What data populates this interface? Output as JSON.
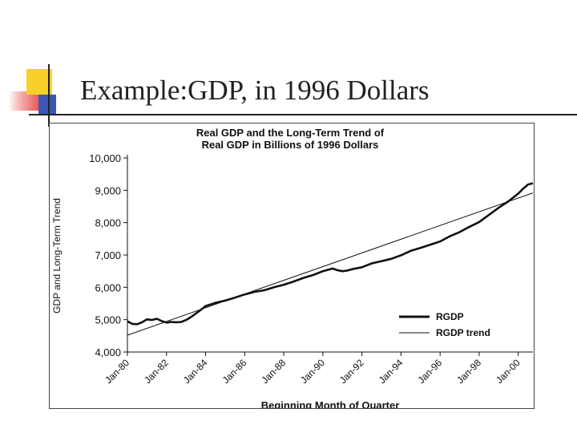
{
  "slide": {
    "title": "Example:GDP, in 1996 Dollars"
  },
  "chart_data": {
    "type": "line",
    "title_line1": "Real GDP and the Long-Term Trend of",
    "title_line2": "Real GDP in Billions of 1996 Dollars",
    "xlabel": "Beginning Month of Quarter",
    "ylabel": "GDP and Long-Term Trend",
    "ylim": [
      4000,
      10000
    ],
    "xlim": [
      1980,
      2000.75
    ],
    "y_ticks": [
      {
        "value": 4000,
        "label": "4,000"
      },
      {
        "value": 5000,
        "label": "5,000"
      },
      {
        "value": 6000,
        "label": "6,000"
      },
      {
        "value": 7000,
        "label": "7,000"
      },
      {
        "value": 8000,
        "label": "8,000"
      },
      {
        "value": 9000,
        "label": "9,000"
      },
      {
        "value": 10000,
        "label": "10,000"
      }
    ],
    "x_ticks": [
      {
        "value": 1980,
        "label": "Jan-80"
      },
      {
        "value": 1982,
        "label": "Jan-82"
      },
      {
        "value": 1984,
        "label": "Jan-84"
      },
      {
        "value": 1986,
        "label": "Jan-86"
      },
      {
        "value": 1988,
        "label": "Jan-88"
      },
      {
        "value": 1990,
        "label": "Jan-90"
      },
      {
        "value": 1992,
        "label": "Jan-92"
      },
      {
        "value": 1994,
        "label": "Jan-94"
      },
      {
        "value": 1996,
        "label": "Jan-96"
      },
      {
        "value": 1998,
        "label": "Jan-98"
      },
      {
        "value": 2000,
        "label": "Jan-00"
      }
    ],
    "legend_position": "bottom-right",
    "grid": false,
    "series": [
      {
        "name": "RGDP",
        "color": "#111111",
        "style": "thick",
        "x": [
          1980.0,
          1980.25,
          1980.5,
          1980.75,
          1981.0,
          1981.25,
          1981.5,
          1981.75,
          1982.0,
          1982.25,
          1982.5,
          1982.75,
          1983.0,
          1983.25,
          1983.5,
          1983.75,
          1984.0,
          1984.5,
          1985.0,
          1985.5,
          1986.0,
          1986.5,
          1987.0,
          1987.5,
          1988.0,
          1988.5,
          1989.0,
          1989.5,
          1990.0,
          1990.5,
          1990.75,
          1991.0,
          1991.25,
          1991.5,
          1992.0,
          1992.5,
          1993.0,
          1993.5,
          1994.0,
          1994.5,
          1995.0,
          1995.5,
          1996.0,
          1996.5,
          1997.0,
          1997.5,
          1998.0,
          1998.5,
          1999.0,
          1999.5,
          2000.0,
          2000.25,
          2000.5,
          2000.75
        ],
        "y": [
          4950,
          4870,
          4860,
          4920,
          5010,
          4990,
          5030,
          4960,
          4910,
          4930,
          4920,
          4930,
          4990,
          5080,
          5190,
          5300,
          5420,
          5520,
          5590,
          5680,
          5780,
          5860,
          5910,
          6000,
          6080,
          6180,
          6290,
          6380,
          6500,
          6580,
          6530,
          6500,
          6520,
          6560,
          6620,
          6740,
          6810,
          6880,
          6990,
          7130,
          7220,
          7320,
          7420,
          7580,
          7710,
          7870,
          8020,
          8240,
          8460,
          8660,
          8900,
          9050,
          9180,
          9220
        ]
      },
      {
        "name": "RGDP trend",
        "color": "#111111",
        "style": "thin",
        "x": [
          1980.0,
          2000.75
        ],
        "y": [
          4520,
          8920
        ]
      }
    ]
  }
}
